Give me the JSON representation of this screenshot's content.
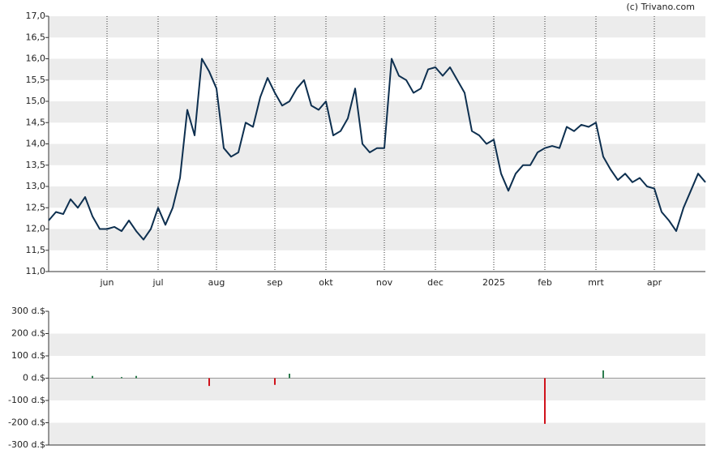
{
  "source": "(c) Trivano.com",
  "chart_data": [
    {
      "type": "line",
      "color": "#0d2f4f",
      "banded": true,
      "categories": [
        null,
        null,
        null,
        null,
        null,
        null,
        null,
        null,
        "jun",
        null,
        null,
        null,
        null,
        null,
        null,
        "jul",
        null,
        null,
        null,
        null,
        null,
        null,
        null,
        "aug",
        null,
        null,
        null,
        null,
        null,
        null,
        null,
        "sep",
        null,
        null,
        null,
        null,
        null,
        null,
        "okt",
        null,
        null,
        null,
        null,
        null,
        null,
        null,
        "nov",
        null,
        null,
        null,
        null,
        null,
        null,
        "dec",
        null,
        null,
        null,
        null,
        null,
        null,
        null,
        "2025",
        null,
        null,
        null,
        null,
        null,
        null,
        "feb",
        null,
        null,
        null,
        null,
        null,
        null,
        "mrt",
        null,
        null,
        null,
        null,
        null,
        null,
        null,
        "apr",
        null,
        null,
        null,
        null,
        null,
        null,
        null
      ],
      "values": [
        12.2,
        12.4,
        12.35,
        12.7,
        12.5,
        12.75,
        12.3,
        12.0,
        12.0,
        12.05,
        11.95,
        12.2,
        11.95,
        11.75,
        12.0,
        12.5,
        12.1,
        12.5,
        13.2,
        14.8,
        14.2,
        16.0,
        15.7,
        15.3,
        13.9,
        13.7,
        13.8,
        14.5,
        14.4,
        15.1,
        15.55,
        15.2,
        14.9,
        15.0,
        15.3,
        15.5,
        14.9,
        14.8,
        15.0,
        14.2,
        14.3,
        14.6,
        15.3,
        14.0,
        13.8,
        13.9,
        13.9,
        16.0,
        15.6,
        15.5,
        15.2,
        15.3,
        15.75,
        15.8,
        15.6,
        15.8,
        15.5,
        15.2,
        14.3,
        14.2,
        14.0,
        14.1,
        13.3,
        12.9,
        13.3,
        13.5,
        13.5,
        13.8,
        13.9,
        13.95,
        13.9,
        14.4,
        14.3,
        14.45,
        14.4,
        14.5,
        13.7,
        13.4,
        13.15,
        13.3,
        13.1,
        13.2,
        13.0,
        12.95,
        12.4,
        12.2,
        11.95,
        12.5,
        12.9,
        13.3,
        13.1
      ],
      "ylim": [
        11,
        17
      ],
      "yticks": [
        {
          "value": 11,
          "label": "11,0"
        },
        {
          "value": 11.5,
          "label": "11,5"
        },
        {
          "value": 12,
          "label": "12,0"
        },
        {
          "value": 12.5,
          "label": "12,5"
        },
        {
          "value": 13,
          "label": "13,0"
        },
        {
          "value": 13.5,
          "label": "13,5"
        },
        {
          "value": 14,
          "label": "14,0"
        },
        {
          "value": 14.5,
          "label": "14,5"
        },
        {
          "value": 15,
          "label": "15,0"
        },
        {
          "value": 15.5,
          "label": "15,5"
        },
        {
          "value": 16,
          "label": "16,0"
        },
        {
          "value": 16.5,
          "label": "16,5"
        },
        {
          "value": 17,
          "label": "17,0"
        }
      ]
    },
    {
      "type": "bar",
      "colors": {
        "positive": "#2e7d4f",
        "negative": "#d0121b"
      },
      "banded": true,
      "values": [
        null,
        null,
        null,
        null,
        null,
        null,
        10,
        null,
        null,
        null,
        5,
        null,
        10,
        null,
        null,
        null,
        null,
        null,
        null,
        null,
        null,
        null,
        -35,
        null,
        null,
        null,
        null,
        null,
        null,
        null,
        null,
        -30,
        null,
        20,
        null,
        null,
        null,
        null,
        null,
        null,
        null,
        null,
        null,
        null,
        null,
        null,
        null,
        null,
        null,
        null,
        null,
        null,
        null,
        null,
        null,
        null,
        null,
        null,
        null,
        null,
        null,
        null,
        null,
        null,
        null,
        null,
        null,
        null,
        -205,
        null,
        null,
        null,
        null,
        null,
        null,
        null,
        35,
        null,
        null,
        null,
        null,
        null,
        null,
        null,
        null,
        null,
        null,
        null,
        null,
        null,
        null
      ],
      "ylim": [
        -300,
        300
      ],
      "yticks": [
        {
          "value": -300,
          "label": "-300 d.$"
        },
        {
          "value": -200,
          "label": "-200 d.$"
        },
        {
          "value": -100,
          "label": "-100 d.$"
        },
        {
          "value": 0,
          "label": "0 d.$"
        },
        {
          "value": 100,
          "label": "100 d.$"
        },
        {
          "value": 200,
          "label": "200 d.$"
        },
        {
          "value": 300,
          "label": "300 d.$"
        }
      ]
    }
  ]
}
